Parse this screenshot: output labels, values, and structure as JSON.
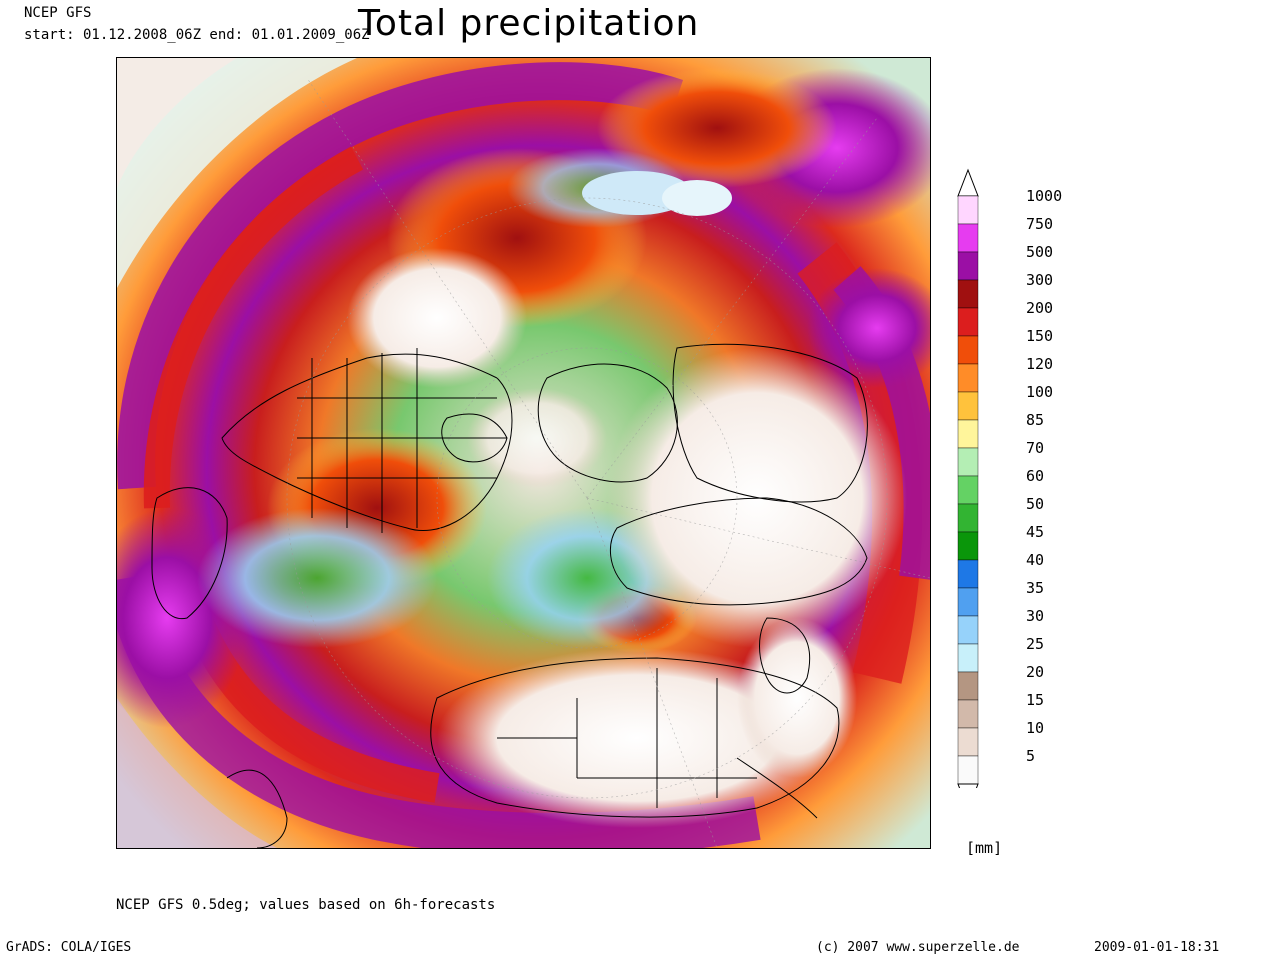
{
  "header": {
    "line1": "NCEP GFS",
    "line2": "start: 01.12.2008_06Z end: 01.01.2009_06Z"
  },
  "title": "Total precipitation",
  "legend": {
    "levels": [
      {
        "label": "1000",
        "color": "#ffd6ff"
      },
      {
        "label": "750",
        "color": "#e63cf0"
      },
      {
        "label": "500",
        "color": "#9b0fa5"
      },
      {
        "label": "300",
        "color": "#a01010"
      },
      {
        "label": "200",
        "color": "#dc1e1e"
      },
      {
        "label": "150",
        "color": "#f04e0a"
      },
      {
        "label": "120",
        "color": "#ff8c28"
      },
      {
        "label": "100",
        "color": "#ffc23c"
      },
      {
        "label": "85",
        "color": "#fff59b"
      },
      {
        "label": "70",
        "color": "#b4eeb4"
      },
      {
        "label": "60",
        "color": "#64d264"
      },
      {
        "label": "50",
        "color": "#32b432"
      },
      {
        "label": "45",
        "color": "#0a960a"
      },
      {
        "label": "40",
        "color": "#1e78e6"
      },
      {
        "label": "35",
        "color": "#50a0f0"
      },
      {
        "label": "30",
        "color": "#96d2fa"
      },
      {
        "label": "25",
        "color": "#c8f0fa"
      },
      {
        "label": "20",
        "color": "#b49682"
      },
      {
        "label": "15",
        "color": "#d2b9aa"
      },
      {
        "label": "10",
        "color": "#ecdcd2"
      },
      {
        "label": "5",
        "color": "#fafafa"
      }
    ],
    "unit": "[mm]"
  },
  "footer": {
    "note": "NCEP GFS 0.5deg; values based on 6h-forecasts",
    "grads": "GrADS: COLA/IGES",
    "copyright": "(c) 2007 www.superzelle.de",
    "timestamp": "2009-01-01-18:31"
  }
}
